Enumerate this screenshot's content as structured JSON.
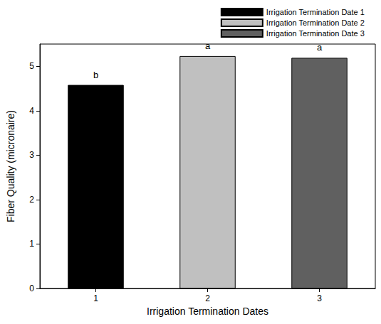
{
  "chart_data": {
    "type": "bar",
    "x_label": "Irrigation Termination Dates",
    "y_label": "Fiber Quality (micronaire)",
    "categories": [
      "1",
      "2",
      "3"
    ],
    "series": [
      {
        "name": "Irrigation Termination Date 1",
        "color": "#000000",
        "values": [
          4.58,
          null,
          null
        ]
      },
      {
        "name": "Irrigation Termination Date 2",
        "color": "#c0c0c0",
        "values": [
          null,
          5.23,
          null
        ]
      },
      {
        "name": "Irrigation Termination Date 3",
        "color": "#606060",
        "values": [
          null,
          null,
          5.19
        ]
      }
    ],
    "annotations": [
      {
        "category": "1",
        "text": "b"
      },
      {
        "category": "2",
        "text": "a"
      },
      {
        "category": "3",
        "text": "a"
      }
    ],
    "ylim": [
      0,
      5.5
    ],
    "yticks": [
      0,
      1,
      2,
      3,
      4,
      5
    ],
    "grid": false,
    "legend": "top-right"
  }
}
